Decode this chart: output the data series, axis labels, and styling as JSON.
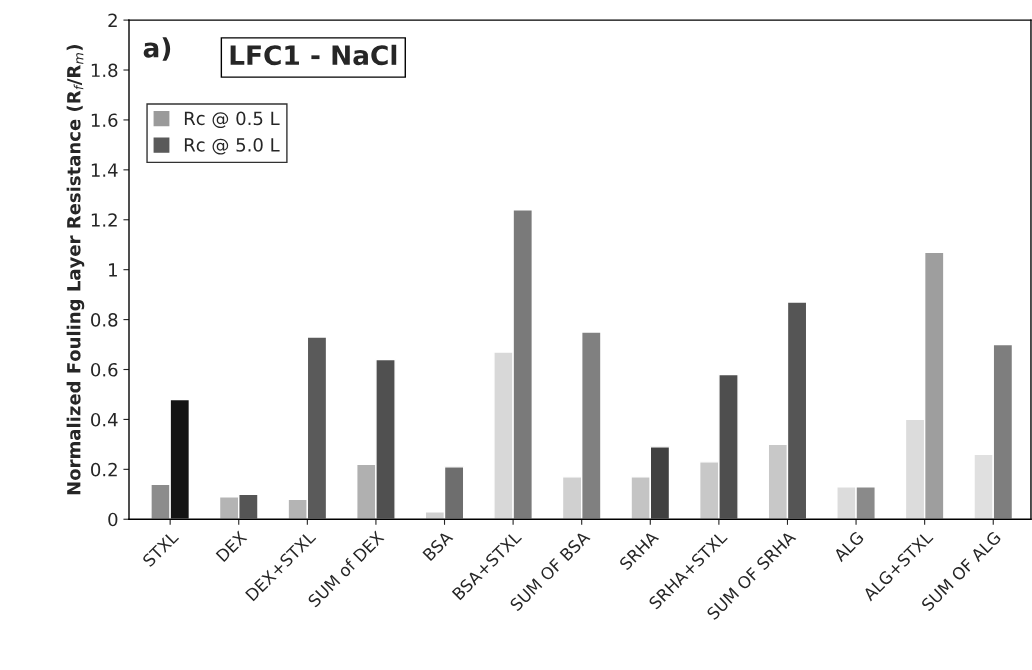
{
  "chart_data": {
    "type": "bar",
    "title": "LFC1 - NaCl",
    "annotations": [
      "a)"
    ],
    "ylabel": "Normalized Fouling Layer Resistance (R$_{f}$/R$_{m}$)",
    "categories": [
      "STXL",
      "DEX",
      "DEX+STXL",
      "SUM of DEX",
      "BSA",
      "BSA+STXL",
      "SUM OF BSA",
      "SRHA",
      "SRHA+STXL",
      "SUM OF SRHA",
      "ALG",
      "ALG+STXL",
      "SUM OF ALG"
    ],
    "series": [
      {
        "name": "Rc @ 0.5 L",
        "color": "#9a9a9a",
        "values": [
          0.14,
          0.09,
          0.08,
          0.22,
          0.03,
          0.67,
          0.17,
          0.17,
          0.23,
          0.3,
          0.13,
          0.4,
          0.26
        ],
        "colors": [
          "#8c8c8c",
          "#b4b4b4",
          "#b4b4b4",
          "#b0b0b0",
          "#d0d0d0",
          "#d8d8d8",
          "#d0d0d0",
          "#c4c4c4",
          "#c8c8c8",
          "#c8c8c8",
          "#dcdcdc",
          "#dcdcdc",
          "#e0e0e0"
        ]
      },
      {
        "name": "Rc @ 5.0 L",
        "color": "#5a5a5a",
        "values": [
          0.48,
          0.1,
          0.73,
          0.64,
          0.21,
          1.24,
          0.75,
          0.29,
          0.58,
          0.87,
          0.13,
          1.07,
          0.7
        ],
        "colors": [
          "#141414",
          "#555555",
          "#5a5a5a",
          "#505050",
          "#6e6e6e",
          "#7a7a7a",
          "#808080",
          "#404040",
          "#4e4e4e",
          "#555555",
          "#8a8a8a",
          "#9e9e9e",
          "#7e7e7e"
        ]
      }
    ],
    "ylim": [
      0,
      2
    ],
    "yticks": [
      0,
      0.2,
      0.4,
      0.6,
      0.8,
      1,
      1.2,
      1.4,
      1.6,
      1.8,
      2
    ],
    "legend": "top left",
    "grid": false
  }
}
